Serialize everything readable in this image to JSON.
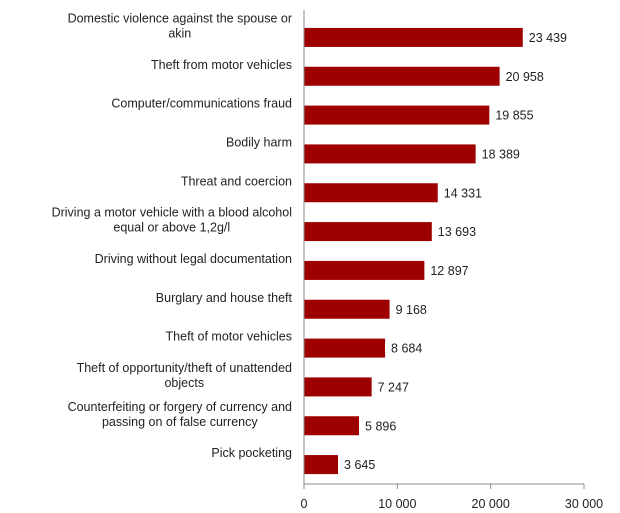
{
  "chart_data": {
    "type": "bar",
    "orientation": "horizontal",
    "title": "",
    "xlabel": "",
    "ylabel": "",
    "categories": [
      [
        "Domestic violence against the spouse or",
        "akin"
      ],
      [
        "Theft from motor vehicles"
      ],
      [
        "Computer/communications fraud"
      ],
      [
        "Bodily harm"
      ],
      [
        "Threat and coercion"
      ],
      [
        "Driving a motor vehicle with a blood alcohol",
        "equal or above 1,2g/l"
      ],
      [
        "Driving without legal documentation"
      ],
      [
        "Burglary and house theft"
      ],
      [
        "Theft of motor vehicles"
      ],
      [
        "Theft of opportunity/theft of unattended",
        "objects"
      ],
      [
        "Counterfeiting or forgery of currency and",
        "passing on of false currency"
      ],
      [
        "Pick pocketing"
      ]
    ],
    "values": [
      23439,
      20958,
      19855,
      18389,
      14331,
      13693,
      12897,
      9168,
      8684,
      7247,
      5896,
      3645
    ],
    "value_labels": [
      "23 439",
      "20 958",
      "19 855",
      "18 389",
      "14 331",
      "13 693",
      "12 897",
      "9 168",
      "8 684",
      "7 247",
      "5 896",
      "3 645"
    ],
    "xlim": [
      0,
      30000
    ],
    "ticks": [
      0,
      10000,
      20000,
      30000
    ],
    "tick_labels": [
      "0",
      "10 000",
      "20 000",
      "30 000"
    ],
    "grid": false,
    "legend": "none",
    "bar_color": "#9e0000"
  }
}
